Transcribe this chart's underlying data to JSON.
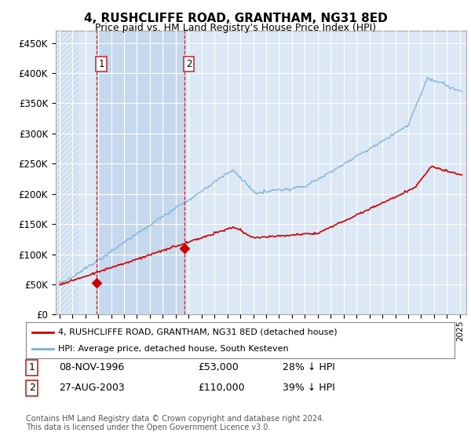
{
  "title": "4, RUSHCLIFFE ROAD, GRANTHAM, NG31 8ED",
  "subtitle": "Price paid vs. HM Land Registry's House Price Index (HPI)",
  "ylabel_ticks": [
    "£0",
    "£50K",
    "£100K",
    "£150K",
    "£200K",
    "£250K",
    "£300K",
    "£350K",
    "£400K",
    "£450K"
  ],
  "ytick_values": [
    0,
    50000,
    100000,
    150000,
    200000,
    250000,
    300000,
    350000,
    400000,
    450000
  ],
  "ylim": [
    0,
    470000
  ],
  "xlim_start": 1993.7,
  "xlim_end": 2025.5,
  "hpi_color": "#7aaed6",
  "price_color": "#cc0000",
  "point1_x": 1996.86,
  "point1_y": 53000,
  "point2_x": 2003.65,
  "point2_y": 110000,
  "legend_label1": "4, RUSHCLIFFE ROAD, GRANTHAM, NG31 8ED (detached house)",
  "legend_label2": "HPI: Average price, detached house, South Kesteven",
  "annotation1_date": "08-NOV-1996",
  "annotation1_price": "£53,000",
  "annotation1_hpi": "28% ↓ HPI",
  "annotation2_date": "27-AUG-2003",
  "annotation2_price": "£110,000",
  "annotation2_hpi": "39% ↓ HPI",
  "footer": "Contains HM Land Registry data © Crown copyright and database right 2024.\nThis data is licensed under the Open Government Licence v3.0.",
  "background_color": "#ffffff",
  "plot_bg_color": "#dce8f5",
  "shade_color": "#dce8f5",
  "hatch_bg_color": "#c5d8ed",
  "grid_color": "#ffffff",
  "label1_box_color": "#cc3333"
}
